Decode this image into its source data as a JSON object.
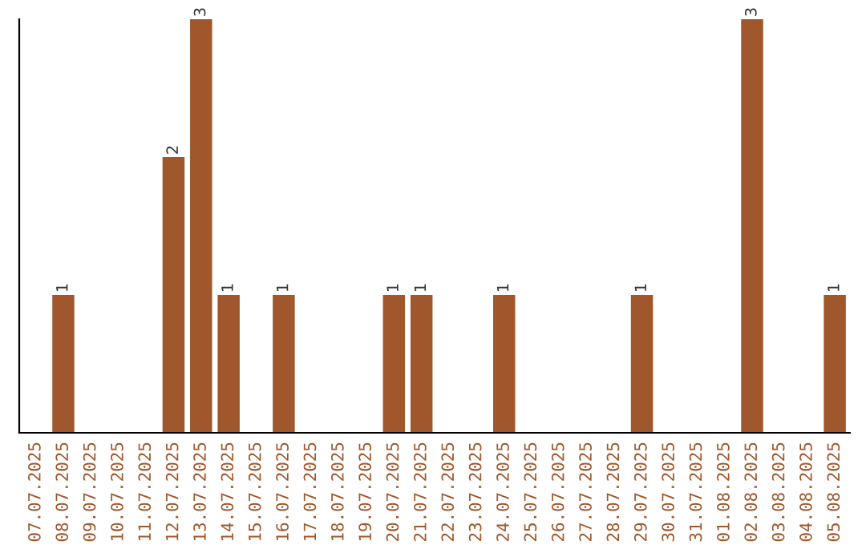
{
  "chart_data": {
    "type": "bar",
    "categories": [
      "07.07.2025",
      "08.07.2025",
      "09.07.2025",
      "10.07.2025",
      "11.07.2025",
      "12.07.2025",
      "13.07.2025",
      "14.07.2025",
      "15.07.2025",
      "16.07.2025",
      "17.07.2025",
      "18.07.2025",
      "19.07.2025",
      "20.07.2025",
      "21.07.2025",
      "22.07.2025",
      "23.07.2025",
      "24.07.2025",
      "25.07.2025",
      "26.07.2025",
      "27.07.2025",
      "28.07.2025",
      "29.07.2025",
      "30.07.2025",
      "31.07.2025",
      "01.08.2025",
      "02.08.2025",
      "03.08.2025",
      "04.08.2025",
      "05.08.2025"
    ],
    "values": [
      0,
      1,
      0,
      0,
      0,
      2,
      3,
      1,
      0,
      1,
      0,
      0,
      0,
      1,
      1,
      0,
      0,
      1,
      0,
      0,
      0,
      0,
      1,
      0,
      0,
      0,
      3,
      0,
      0,
      1
    ],
    "value_labels": [
      null,
      "1",
      null,
      null,
      null,
      "2",
      "3",
      "1",
      null,
      "1",
      null,
      null,
      null,
      "1",
      "1",
      null,
      null,
      "1",
      null,
      null,
      null,
      null,
      "1",
      null,
      null,
      null,
      "3",
      null,
      null,
      "1"
    ],
    "color": "#a0572b",
    "grid": false,
    "legend": false
  }
}
